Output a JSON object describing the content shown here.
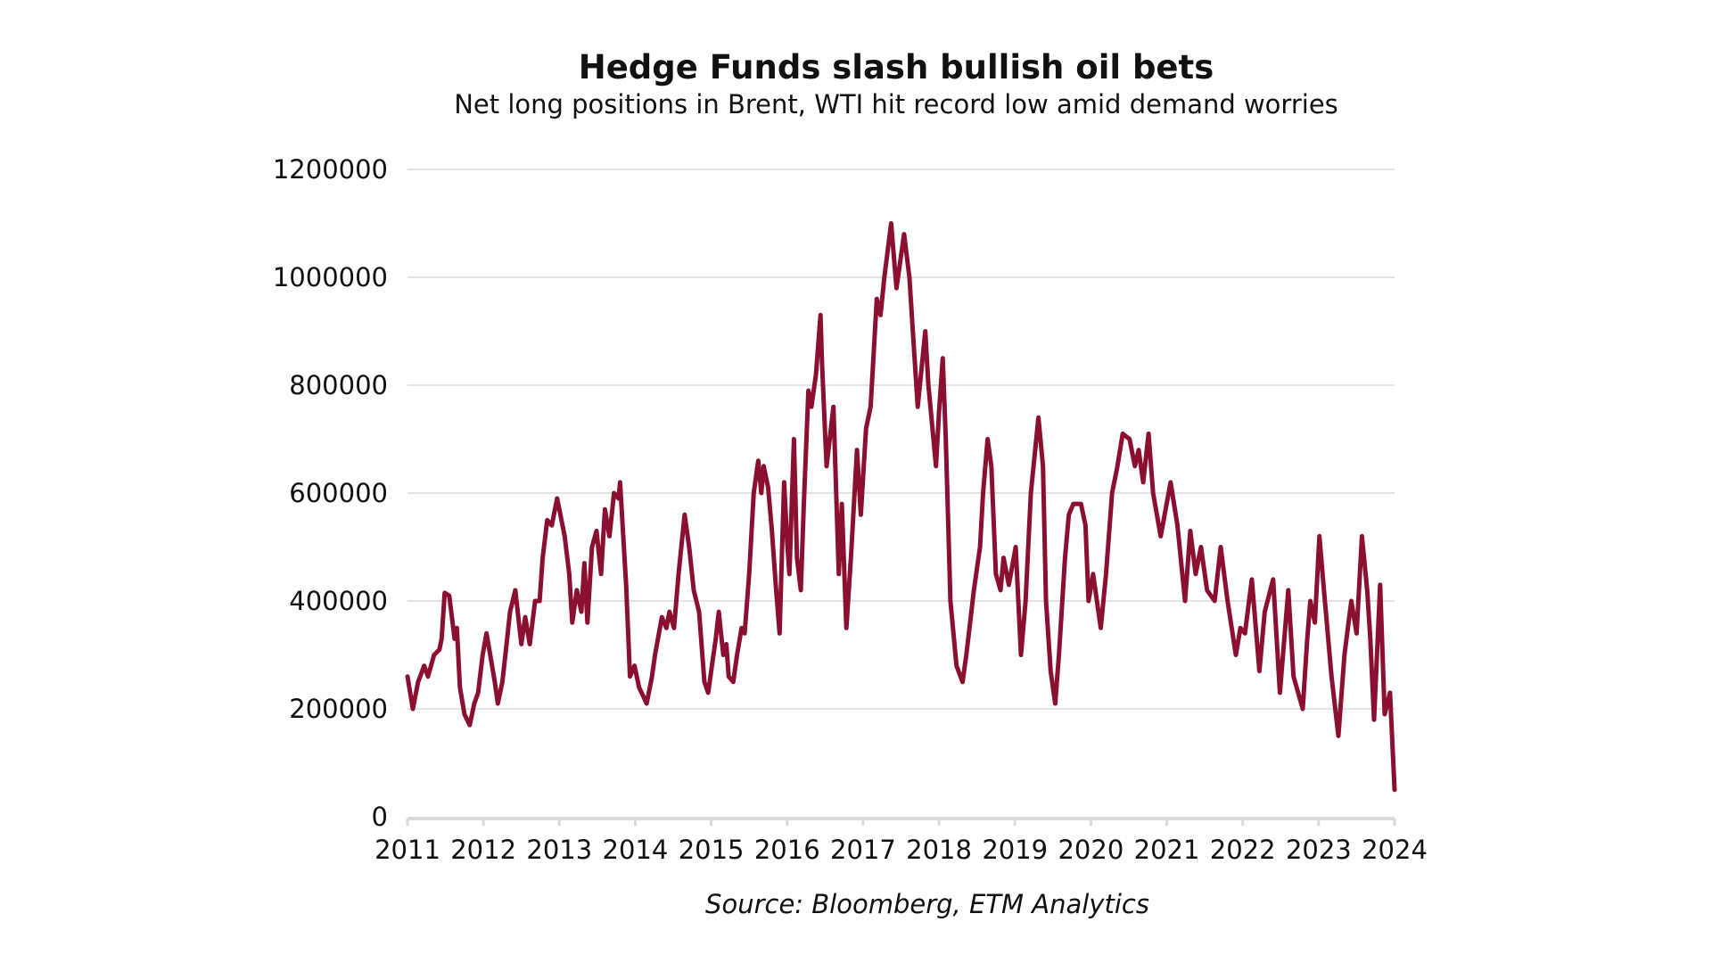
{
  "chart_data": {
    "type": "line",
    "title": "Hedge Funds slash bullish oil bets",
    "subtitle": "Net long positions in Brent, WTI hit record low amid demand worries",
    "source": "Source: Bloomberg, ETM Analytics",
    "xlabel": "",
    "ylabel": "",
    "xlim": [
      2011,
      2024
    ],
    "ylim": [
      0,
      1200000
    ],
    "x_ticks": [
      "2011",
      "2012",
      "2013",
      "2014",
      "2015",
      "2016",
      "2017",
      "2018",
      "2019",
      "2020",
      "2021",
      "2022",
      "2023",
      "2024"
    ],
    "y_ticks": [
      "0",
      "200000",
      "400000",
      "600000",
      "800000",
      "1000000",
      "1200000"
    ],
    "grid": "horizontal",
    "legend": "none",
    "line_color": "#8b1030",
    "series": [
      {
        "name": "Net long positions",
        "x": [
          2011.0,
          2011.07,
          2011.14,
          2011.22,
          2011.27,
          2011.35,
          2011.42,
          2011.45,
          2011.49,
          2011.55,
          2011.62,
          2011.65,
          2011.69,
          2011.75,
          2011.82,
          2011.88,
          2011.93,
          2011.99,
          2012.04,
          2012.09,
          2012.15,
          2012.19,
          2012.25,
          2012.29,
          2012.35,
          2012.42,
          2012.5,
          2012.55,
          2012.61,
          2012.68,
          2012.74,
          2012.78,
          2012.84,
          2012.9,
          2012.97,
          2013.07,
          2013.13,
          2013.17,
          2013.23,
          2013.29,
          2013.33,
          2013.37,
          2013.43,
          2013.49,
          2013.55,
          2013.6,
          2013.66,
          2013.72,
          2013.78,
          2013.8,
          2013.88,
          2013.93,
          2013.99,
          2014.05,
          2014.15,
          2014.22,
          2014.26,
          2014.35,
          2014.41,
          2014.45,
          2014.51,
          2014.57,
          2014.65,
          2014.71,
          2014.77,
          2014.84,
          2014.91,
          2014.96,
          2015.0,
          2015.06,
          2015.1,
          2015.16,
          2015.2,
          2015.23,
          2015.29,
          2015.34,
          2015.4,
          2015.44,
          2015.5,
          2015.56,
          2015.62,
          2015.66,
          2015.69,
          2015.75,
          2015.8,
          2015.85,
          2015.9,
          2015.93,
          2015.96,
          2016.0,
          2016.03,
          2016.09,
          2016.13,
          2016.18,
          2016.22,
          2016.28,
          2016.32,
          2016.38,
          2016.44,
          2016.46,
          2016.52,
          2016.61,
          2016.68,
          2016.72,
          2016.78,
          2016.84,
          2016.92,
          2016.97,
          2017.04,
          2017.1,
          2017.18,
          2017.23,
          2017.28,
          2017.37,
          2017.44,
          2017.54,
          2017.61,
          2017.72,
          2017.82,
          2017.86,
          2017.96,
          2018.0,
          2018.05,
          2018.09,
          2018.15,
          2018.23,
          2018.31,
          2018.36,
          2018.41,
          2018.46,
          2018.54,
          2018.58,
          2018.64,
          2018.69,
          2018.75,
          2018.81,
          2018.85,
          2018.92,
          2019.01,
          2019.08,
          2019.14,
          2019.21,
          2019.31,
          2019.37,
          2019.41,
          2019.47,
          2019.53,
          2019.58,
          2019.66,
          2019.71,
          2019.77,
          2019.87,
          2019.93,
          2019.97,
          2020.03,
          2020.13,
          2020.2,
          2020.28,
          2020.35,
          2020.42,
          2020.51,
          2020.58,
          2020.63,
          2020.69,
          2020.76,
          2020.82,
          2020.92,
          2021.05,
          2021.14,
          2021.24,
          2021.31,
          2021.38,
          2021.45,
          2021.53,
          2021.63,
          2021.71,
          2021.8,
          2021.91,
          2021.97,
          2022.03,
          2022.12,
          2022.22,
          2022.29,
          2022.4,
          2022.49,
          2022.6,
          2022.67,
          2022.79,
          2022.85,
          2022.89,
          2022.95,
          2023.01,
          2023.07,
          2023.17,
          2023.26,
          2023.34,
          2023.43,
          2023.5,
          2023.57,
          2023.64,
          2023.68,
          2023.73,
          2023.81,
          2023.87,
          2023.94,
          2024.0
        ],
        "values": [
          260000,
          200000,
          250000,
          280000,
          260000,
          300000,
          310000,
          330000,
          415000,
          410000,
          330000,
          350000,
          240000,
          190000,
          170000,
          210000,
          230000,
          300000,
          340000,
          300000,
          250000,
          210000,
          250000,
          300000,
          380000,
          420000,
          320000,
          370000,
          320000,
          400000,
          400000,
          480000,
          550000,
          540000,
          590000,
          520000,
          450000,
          360000,
          420000,
          380000,
          470000,
          360000,
          500000,
          530000,
          450000,
          570000,
          520000,
          600000,
          590000,
          620000,
          430000,
          260000,
          280000,
          240000,
          210000,
          260000,
          300000,
          370000,
          350000,
          380000,
          350000,
          450000,
          560000,
          500000,
          420000,
          380000,
          250000,
          230000,
          270000,
          330000,
          380000,
          300000,
          320000,
          260000,
          250000,
          300000,
          350000,
          340000,
          450000,
          600000,
          660000,
          600000,
          650000,
          610000,
          530000,
          430000,
          340000,
          480000,
          620000,
          510000,
          450000,
          700000,
          480000,
          420000,
          580000,
          790000,
          760000,
          820000,
          930000,
          840000,
          650000,
          760000,
          450000,
          580000,
          350000,
          480000,
          680000,
          560000,
          720000,
          760000,
          960000,
          930000,
          1000000,
          1100000,
          980000,
          1080000,
          1000000,
          760000,
          900000,
          800000,
          650000,
          750000,
          850000,
          700000,
          400000,
          280000,
          250000,
          300000,
          360000,
          420000,
          500000,
          600000,
          700000,
          650000,
          450000,
          420000,
          480000,
          430000,
          500000,
          300000,
          400000,
          600000,
          740000,
          650000,
          400000,
          270000,
          210000,
          300000,
          480000,
          560000,
          580000,
          580000,
          540000,
          400000,
          450000,
          350000,
          450000,
          600000,
          650000,
          710000,
          700000,
          650000,
          680000,
          620000,
          710000,
          600000,
          520000,
          620000,
          540000,
          400000,
          530000,
          450000,
          500000,
          420000,
          400000,
          500000,
          400000,
          300000,
          350000,
          340000,
          440000,
          270000,
          380000,
          440000,
          230000,
          420000,
          260000,
          200000,
          330000,
          400000,
          360000,
          520000,
          420000,
          260000,
          150000,
          300000,
          400000,
          340000,
          520000,
          420000,
          330000,
          180000,
          430000,
          190000,
          230000,
          50000
        ]
      }
    ]
  }
}
